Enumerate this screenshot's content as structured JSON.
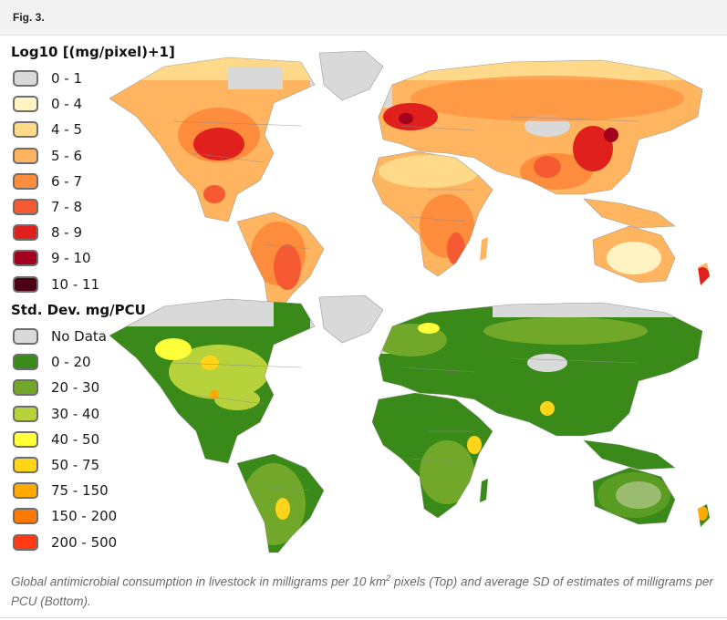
{
  "header": {
    "fig_label": "Fig. 3."
  },
  "top_map": {
    "legend_title": "Log10 [(mg/pixel)+1]",
    "legend": [
      {
        "label": "0 - 1",
        "color": "#d9d9d9"
      },
      {
        "label": "0 - 4",
        "color": "#fff3c4"
      },
      {
        "label": "4 - 5",
        "color": "#ffd98a"
      },
      {
        "label": "5 - 6",
        "color": "#ffb560"
      },
      {
        "label": "6 - 7",
        "color": "#fd8d3c"
      },
      {
        "label": "7 - 8",
        "color": "#f55a32"
      },
      {
        "label": "8 - 9",
        "color": "#e0201c"
      },
      {
        "label": "9 - 10",
        "color": "#a3001f"
      },
      {
        "label": "10 - 11",
        "color": "#4d0016"
      }
    ]
  },
  "bottom_map": {
    "legend_title": "Std. Dev. mg/PCU",
    "legend": [
      {
        "label": "No Data",
        "color": "#d9d9d9"
      },
      {
        "label": "0 - 20",
        "color": "#3a8a1a"
      },
      {
        "label": "20 - 30",
        "color": "#72a82a"
      },
      {
        "label": "30 - 40",
        "color": "#b7d23a"
      },
      {
        "label": "40 - 50",
        "color": "#ffff3a"
      },
      {
        "label": "50 - 75",
        "color": "#ffd51a"
      },
      {
        "label": "75 - 150",
        "color": "#ffaa00"
      },
      {
        "label": "150 - 200",
        "color": "#ff7a00"
      },
      {
        "label": "200 - 500",
        "color": "#ff3a14"
      }
    ]
  },
  "caption": {
    "part1": "Global antimicrobial consumption in livestock in milligrams per 10 km",
    "superscript": "2",
    "part2": " pixels (Top) and average SD of estimates of milligrams per PCU (Bottom)."
  }
}
